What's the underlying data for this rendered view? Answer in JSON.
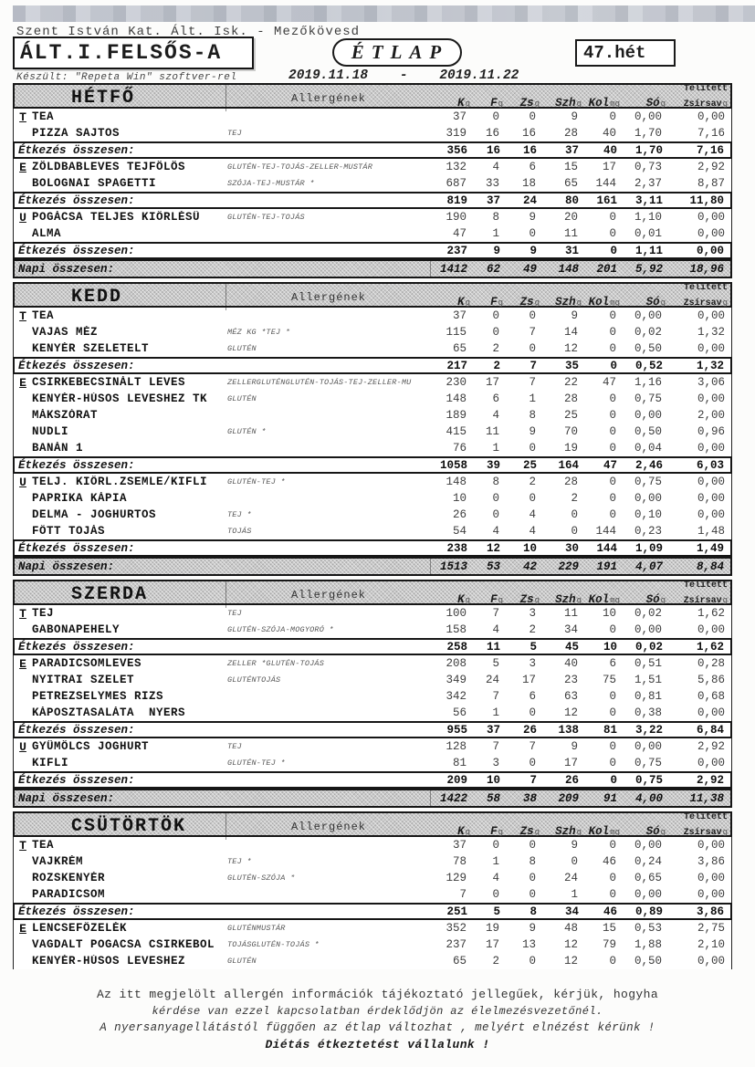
{
  "header": {
    "school": "Szent István Kat. Ált. Isk. - Mezőkövesd",
    "class_name": "ÁLT.I.FELSŐS-A",
    "doc_title": "ÉTLAP",
    "week": "47.hét",
    "made_with": "Készült: \"Repeta Win\" szoftver-rel",
    "date_range": "2019.11.18    -    2019.11.22"
  },
  "table": {
    "allergen_header": "Allergének",
    "meal_total_label": "Étkezés összesen:",
    "day_total_label": "Napi összesen:",
    "columns": [
      {
        "label": "K",
        "unit": "g"
      },
      {
        "label": "F",
        "unit": "g"
      },
      {
        "label": "Zs",
        "unit": "g"
      },
      {
        "label": "Szh",
        "unit": "g"
      },
      {
        "label": "Kol",
        "unit": "mg"
      },
      {
        "label": "Só",
        "unit": "g"
      },
      {
        "label": "Zsírsav",
        "unit": "g",
        "above": "Telített"
      }
    ]
  },
  "days": [
    {
      "name": "HÉTFŐ",
      "groups": [
        {
          "marker": "T",
          "items": [
            {
              "name": "TEA",
              "allergens": "",
              "values": [
                "37",
                "0",
                "0",
                "9",
                "0",
                "0,00",
                "0,00"
              ]
            },
            {
              "name": "PIZZA SAJTOS",
              "allergens": "TEJ",
              "values": [
                "319",
                "16",
                "16",
                "28",
                "40",
                "1,70",
                "7,16"
              ]
            }
          ],
          "total": [
            "356",
            "16",
            "16",
            "37",
            "40",
            "1,70",
            "7,16"
          ]
        },
        {
          "marker": "E",
          "items": [
            {
              "name": "ZÖLDBABLEVES TEJFÖLÖS",
              "allergens": "GLUTÉN-TEJ-TOJÁS-ZELLER-MUSTÁR",
              "values": [
                "132",
                "4",
                "6",
                "15",
                "17",
                "0,73",
                "2,92"
              ]
            },
            {
              "name": "BOLOGNAI SPAGETTI",
              "allergens": "SZÓJA-TEJ-MUSTÁR *",
              "values": [
                "687",
                "33",
                "18",
                "65",
                "144",
                "2,37",
                "8,87"
              ]
            }
          ],
          "total": [
            "819",
            "37",
            "24",
            "80",
            "161",
            "3,11",
            "11,80"
          ]
        },
        {
          "marker": "U",
          "items": [
            {
              "name": "POGÁCSA TELJES KIŐRLÉSŰ",
              "allergens": "GLUTÉN-TEJ-TOJÁS",
              "values": [
                "190",
                "8",
                "9",
                "20",
                "0",
                "1,10",
                "0,00"
              ]
            },
            {
              "name": "ALMA",
              "allergens": "",
              "values": [
                "47",
                "1",
                "0",
                "11",
                "0",
                "0,01",
                "0,00"
              ]
            }
          ],
          "total": [
            "237",
            "9",
            "9",
            "31",
            "0",
            "1,11",
            "0,00"
          ]
        }
      ],
      "day_total": [
        "1412",
        "62",
        "49",
        "148",
        "201",
        "5,92",
        "18,96"
      ]
    },
    {
      "name": "KEDD",
      "groups": [
        {
          "marker": "T",
          "items": [
            {
              "name": "TEA",
              "allergens": "",
              "values": [
                "37",
                "0",
                "0",
                "9",
                "0",
                "0,00",
                "0,00"
              ]
            },
            {
              "name": "VAJAS MÉZ",
              "allergens": "MÉZ KG *TEJ *",
              "values": [
                "115",
                "0",
                "7",
                "14",
                "0",
                "0,02",
                "1,32"
              ]
            },
            {
              "name": "KENYÉR SZELETELT",
              "allergens": "GLUTÉN",
              "values": [
                "65",
                "2",
                "0",
                "12",
                "0",
                "0,50",
                "0,00"
              ]
            }
          ],
          "total": [
            "217",
            "2",
            "7",
            "35",
            "0",
            "0,52",
            "1,32"
          ]
        },
        {
          "marker": "E",
          "items": [
            {
              "name": "CSIRKEBECSINÁLT LEVES",
              "allergens": "ZELLERGLUTÉNGLUTÉN-TOJÁS-TEJ-ZELLER-MU",
              "values": [
                "230",
                "17",
                "7",
                "22",
                "47",
                "1,16",
                "3,06"
              ]
            },
            {
              "name": "KENYÉR-HÚSOS LEVESHEZ TK",
              "allergens": "GLUTÉN",
              "values": [
                "148",
                "6",
                "1",
                "28",
                "0",
                "0,75",
                "0,00"
              ]
            },
            {
              "name": "MÁKSZÓRAT",
              "allergens": "",
              "values": [
                "189",
                "4",
                "8",
                "25",
                "0",
                "0,00",
                "2,00"
              ]
            },
            {
              "name": "NUDLI",
              "allergens": "GLUTÉN *",
              "values": [
                "415",
                "11",
                "9",
                "70",
                "0",
                "0,50",
                "0,96"
              ]
            },
            {
              "name": "BANÁN 1",
              "allergens": "",
              "values": [
                "76",
                "1",
                "0",
                "19",
                "0",
                "0,04",
                "0,00"
              ]
            }
          ],
          "total": [
            "1058",
            "39",
            "25",
            "164",
            "47",
            "2,46",
            "6,03"
          ]
        },
        {
          "marker": "U",
          "items": [
            {
              "name": "TELJ. KIŐRL.ZSEMLE/KIFLI",
              "allergens": "GLUTÉN-TEJ *",
              "values": [
                "148",
                "8",
                "2",
                "28",
                "0",
                "0,75",
                "0,00"
              ]
            },
            {
              "name": "PAPRIKA KÁPIA",
              "allergens": "",
              "values": [
                "10",
                "0",
                "0",
                "2",
                "0",
                "0,00",
                "0,00"
              ]
            },
            {
              "name": "DELMA - JOGHURTOS",
              "allergens": "TEJ *",
              "values": [
                "26",
                "0",
                "4",
                "0",
                "0",
                "0,10",
                "0,00"
              ]
            },
            {
              "name": "FŐTT TOJÁS",
              "allergens": "TOJÁS",
              "values": [
                "54",
                "4",
                "4",
                "0",
                "144",
                "0,23",
                "1,48"
              ]
            }
          ],
          "total": [
            "238",
            "12",
            "10",
            "30",
            "144",
            "1,09",
            "1,49"
          ]
        }
      ],
      "day_total": [
        "1513",
        "53",
        "42",
        "229",
        "191",
        "4,07",
        "8,84"
      ]
    },
    {
      "name": "SZERDA",
      "groups": [
        {
          "marker": "T",
          "items": [
            {
              "name": "TEJ",
              "allergens": "TEJ",
              "values": [
                "100",
                "7",
                "3",
                "11",
                "10",
                "0,02",
                "1,62"
              ]
            },
            {
              "name": "GABONAPEHELY",
              "allergens": "GLUTÉN-SZÓJA-MOGYORÓ *",
              "values": [
                "158",
                "4",
                "2",
                "34",
                "0",
                "0,00",
                "0,00"
              ]
            }
          ],
          "total": [
            "258",
            "11",
            "5",
            "45",
            "10",
            "0,02",
            "1,62"
          ]
        },
        {
          "marker": "E",
          "items": [
            {
              "name": "PARADICSOMLEVES",
              "allergens": "ZELLER *GLUTÉN-TOJÁS",
              "values": [
                "208",
                "5",
                "3",
                "40",
                "6",
                "0,51",
                "0,28"
              ]
            },
            {
              "name": "NYITRAI SZELET",
              "allergens": "GLUTÉNTOJÁS",
              "values": [
                "349",
                "24",
                "17",
                "23",
                "75",
                "1,51",
                "5,86"
              ]
            },
            {
              "name": "PETREZSELYMES RIZS",
              "allergens": "",
              "values": [
                "342",
                "7",
                "6",
                "63",
                "0",
                "0,81",
                "0,68"
              ]
            },
            {
              "name": "KÁPOSZTASALÁTA  NYERS",
              "allergens": "",
              "values": [
                "56",
                "1",
                "0",
                "12",
                "0",
                "0,38",
                "0,00"
              ]
            }
          ],
          "total": [
            "955",
            "37",
            "26",
            "138",
            "81",
            "3,22",
            "6,84"
          ]
        },
        {
          "marker": "U",
          "items": [
            {
              "name": "GYÜMÖLCS JOGHURT",
              "allergens": "TEJ",
              "values": [
                "128",
                "7",
                "7",
                "9",
                "0",
                "0,00",
                "2,92"
              ]
            },
            {
              "name": "KIFLI",
              "allergens": "GLUTÉN-TEJ *",
              "values": [
                "81",
                "3",
                "0",
                "17",
                "0",
                "0,75",
                "0,00"
              ]
            }
          ],
          "total": [
            "209",
            "10",
            "7",
            "26",
            "0",
            "0,75",
            "2,92"
          ]
        }
      ],
      "day_total": [
        "1422",
        "58",
        "38",
        "209",
        "91",
        "4,00",
        "11,38"
      ]
    },
    {
      "name": "CSÜTÖRTÖK",
      "groups": [
        {
          "marker": "T",
          "items": [
            {
              "name": "TEA",
              "allergens": "",
              "values": [
                "37",
                "0",
                "0",
                "9",
                "0",
                "0,00",
                "0,00"
              ]
            },
            {
              "name": "VAJKRÉM",
              "allergens": "TEJ *",
              "values": [
                "78",
                "1",
                "8",
                "0",
                "46",
                "0,24",
                "3,86"
              ]
            },
            {
              "name": "ROZSKENYÉR",
              "allergens": "GLUTÉN-SZÓJA *",
              "values": [
                "129",
                "4",
                "0",
                "24",
                "0",
                "0,65",
                "0,00"
              ]
            },
            {
              "name": "PARADICSOM",
              "allergens": "",
              "values": [
                "7",
                "0",
                "0",
                "1",
                "0",
                "0,00",
                "0,00"
              ]
            }
          ],
          "total": [
            "251",
            "5",
            "8",
            "34",
            "46",
            "0,89",
            "3,86"
          ]
        },
        {
          "marker": "E",
          "items": [
            {
              "name": "LENCSEFŐZELÉK",
              "allergens": "GLUTÉNMUSTÁR",
              "values": [
                "352",
                "19",
                "9",
                "48",
                "15",
                "0,53",
                "2,75"
              ]
            },
            {
              "name": "VAGDALT POGACSA CSIRKEBOL",
              "allergens": "TOJÁSGLUTÉN-TOJÁS *",
              "values": [
                "237",
                "17",
                "13",
                "12",
                "79",
                "1,88",
                "2,10"
              ]
            },
            {
              "name": "KENYÉR-HÚSOS LEVESHEZ",
              "allergens": "GLUTÉN",
              "values": [
                "65",
                "2",
                "0",
                "12",
                "0",
                "0,50",
                "0,00"
              ]
            }
          ],
          "total": null
        }
      ],
      "day_total": null
    }
  ],
  "footer": {
    "line1": "Az itt megjelölt allergén információk tájékoztató jellegűek, kérjük, hogyha",
    "line2": "kérdése van ezzel kapcsolatban érdeklődjön az élelmezésvezetőnél.",
    "line3": "A nyersanyagellátástól függően az étlap változhat , melyért elnézést kérünk !",
    "line4": "Diétás étkeztetést vállalunk !"
  }
}
